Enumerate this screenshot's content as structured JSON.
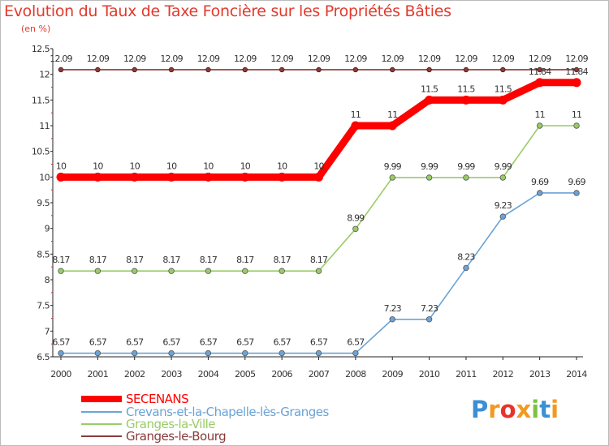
{
  "chart_data": {
    "type": "line",
    "title": "Evolution du Taux de Taxe Foncière sur les Propriétés Bâties",
    "ylabel": "(en %)",
    "xlabel": "",
    "categories": [
      "2000",
      "2001",
      "2002",
      "2003",
      "2004",
      "2005",
      "2006",
      "2007",
      "2008",
      "2009",
      "2010",
      "2011",
      "2012",
      "2013",
      "2014"
    ],
    "ylim": [
      6.5,
      12.5
    ],
    "yticks": [
      "6.5",
      "7",
      "7.5",
      "8",
      "8.5",
      "9",
      "9.5",
      "10",
      "10.5",
      "11",
      "11.5",
      "12",
      "12.5"
    ],
    "grid": false,
    "legend_position": "bottom-left",
    "series": [
      {
        "name": "SECENANS",
        "color": "#ff0000",
        "values": [
          10,
          10,
          10,
          10,
          10,
          10,
          10,
          10,
          11,
          11,
          11.5,
          11.5,
          11.5,
          11.84,
          11.84
        ],
        "labels": [
          "10",
          "10",
          "10",
          "10",
          "10",
          "10",
          "10",
          "10",
          "11",
          "11",
          "11.5",
          "11.5",
          "11.5",
          "11.84",
          "11.84"
        ]
      },
      {
        "name": "Crevans-et-la-Chapelle-lès-Granges",
        "color": "#6ba3d6",
        "values": [
          6.57,
          6.57,
          6.57,
          6.57,
          6.57,
          6.57,
          6.57,
          6.57,
          6.57,
          7.23,
          7.23,
          8.23,
          9.23,
          9.69,
          9.69
        ],
        "labels": [
          "6.57",
          "6.57",
          "6.57",
          "6.57",
          "6.57",
          "6.57",
          "6.57",
          "6.57",
          "6.57",
          "7.23",
          "7.23",
          "8.23",
          "9.23",
          "9.69",
          "9.69"
        ]
      },
      {
        "name": "Granges-la-Ville",
        "color": "#99cc66",
        "values": [
          8.17,
          8.17,
          8.17,
          8.17,
          8.17,
          8.17,
          8.17,
          8.17,
          8.99,
          9.99,
          9.99,
          9.99,
          9.99,
          11,
          11
        ],
        "labels": [
          "8.17",
          "8.17",
          "8.17",
          "8.17",
          "8.17",
          "8.17",
          "8.17",
          "8.17",
          "8.99",
          "9.99",
          "9.99",
          "9.99",
          "9.99",
          "11",
          "11"
        ]
      },
      {
        "name": "Granges-le-Bourg",
        "color": "#8b3a3a",
        "values": [
          12.09,
          12.09,
          12.09,
          12.09,
          12.09,
          12.09,
          12.09,
          12.09,
          12.09,
          12.09,
          12.09,
          12.09,
          12.09,
          12.09,
          12.09
        ],
        "labels": [
          "12.09",
          "12.09",
          "12.09",
          "12.09",
          "12.09",
          "12.09",
          "12.09",
          "12.09",
          "12.09",
          "12.09",
          "12.09",
          "12.09",
          "12.09",
          "12.09",
          "12.09"
        ]
      }
    ]
  },
  "logo": {
    "letters": [
      "P",
      "r",
      "o",
      "x",
      "i",
      "t",
      "i"
    ],
    "colors": [
      "#3b8fd4",
      "#f29a1f",
      "#e9322b",
      "#f29a1f",
      "#7cc242",
      "#3b8fd4",
      "#f29a1f"
    ]
  }
}
